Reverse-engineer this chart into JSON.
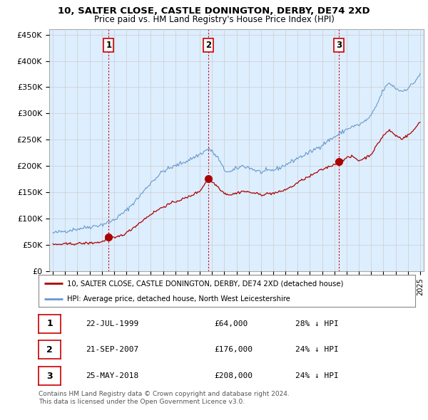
{
  "title": "10, SALTER CLOSE, CASTLE DONINGTON, DERBY, DE74 2XD",
  "subtitle": "Price paid vs. HM Land Registry's House Price Index (HPI)",
  "ylabel_ticks": [
    "£0",
    "£50K",
    "£100K",
    "£150K",
    "£200K",
    "£250K",
    "£300K",
    "£350K",
    "£400K",
    "£450K"
  ],
  "ytick_values": [
    0,
    50000,
    100000,
    150000,
    200000,
    250000,
    300000,
    350000,
    400000,
    450000
  ],
  "ylim": [
    0,
    460000
  ],
  "xlim_start": 1994.7,
  "xlim_end": 2025.3,
  "xtick_years": [
    1995,
    1996,
    1997,
    1998,
    1999,
    2000,
    2001,
    2002,
    2003,
    2004,
    2005,
    2006,
    2007,
    2008,
    2009,
    2010,
    2011,
    2012,
    2013,
    2014,
    2015,
    2016,
    2017,
    2018,
    2019,
    2020,
    2021,
    2022,
    2023,
    2024,
    2025
  ],
  "sale_dates": [
    1999.554,
    2007.724,
    2018.392
  ],
  "sale_prices": [
    64000,
    176000,
    208000
  ],
  "sale_labels": [
    "1",
    "2",
    "3"
  ],
  "sale_color": "#aa0000",
  "hpi_color": "#6699cc",
  "hpi_fill_color": "#ddeeff",
  "vline_color": "#cc0000",
  "legend_label_red": "10, SALTER CLOSE, CASTLE DONINGTON, DERBY, DE74 2XD (detached house)",
  "legend_label_blue": "HPI: Average price, detached house, North West Leicestershire",
  "table_rows": [
    [
      "1",
      "22-JUL-1999",
      "£64,000",
      "28% ↓ HPI"
    ],
    [
      "2",
      "21-SEP-2007",
      "£176,000",
      "24% ↓ HPI"
    ],
    [
      "3",
      "25-MAY-2018",
      "£208,000",
      "24% ↓ HPI"
    ]
  ],
  "footer": "Contains HM Land Registry data © Crown copyright and database right 2024.\nThis data is licensed under the Open Government Licence v3.0.",
  "background_color": "#ffffff",
  "grid_color": "#cccccc"
}
